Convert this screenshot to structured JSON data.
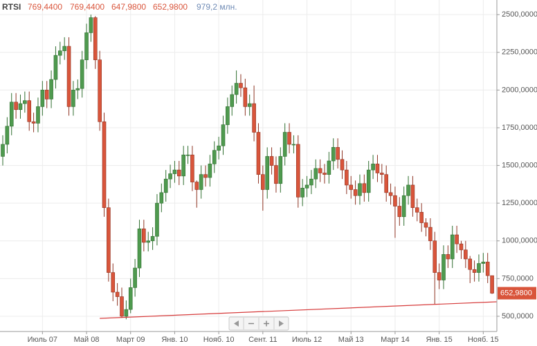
{
  "chart_data": {
    "type": "candlestick",
    "title": "RTSI",
    "ohlc_labels": [
      "769,4400",
      "769,4400",
      "647,9800",
      "652,9800"
    ],
    "volume_label": "979,2 млн.",
    "last_label": "652,9800",
    "categories": [
      null,
      null,
      null,
      null,
      null,
      null,
      null,
      null,
      null,
      "Июль 07",
      null,
      null,
      null,
      null,
      null,
      null,
      null,
      null,
      null,
      "Май 08",
      null,
      null,
      null,
      null,
      null,
      null,
      null,
      null,
      null,
      "Март 09",
      null,
      null,
      null,
      null,
      null,
      null,
      null,
      null,
      null,
      "Янв. 10",
      null,
      null,
      null,
      null,
      null,
      null,
      null,
      null,
      null,
      "Нояб. 10",
      null,
      null,
      null,
      null,
      null,
      null,
      null,
      null,
      null,
      "Сент. 11",
      null,
      null,
      null,
      null,
      null,
      null,
      null,
      null,
      null,
      "Июль 12",
      null,
      null,
      null,
      null,
      null,
      null,
      null,
      null,
      null,
      "Май 13",
      null,
      null,
      null,
      null,
      null,
      null,
      null,
      null,
      null,
      "Март 14",
      null,
      null,
      null,
      null,
      null,
      null,
      null,
      null,
      null,
      "Янв. 15",
      null,
      null,
      null,
      null,
      null,
      null,
      null,
      null,
      null,
      "Нояб. 15",
      null,
      null
    ],
    "open": [
      1560,
      1640,
      1760,
      1920,
      1870,
      1910,
      1930,
      1790,
      1780,
      1890,
      2000,
      1940,
      2070,
      2230,
      2260,
      2290,
      1890,
      2000,
      2010,
      2200,
      2380,
      2480,
      2200,
      1790,
      1220,
      790,
      660,
      630,
      500,
      545,
      690,
      820,
      1080,
      990,
      1000,
      1030,
      1250,
      1320,
      1410,
      1445,
      1470,
      1430,
      1570,
      1570,
      1390,
      1340,
      1440,
      1420,
      1510,
      1600,
      1630,
      1770,
      1890,
      1970,
      2045,
      2015,
      1890,
      1910,
      1720,
      1440,
      1340,
      1560,
      1500,
      1380,
      1560,
      1720,
      1640,
      1640,
      1290,
      1350,
      1370,
      1410,
      1480,
      1450,
      1440,
      1530,
      1620,
      1540,
      1470,
      1370,
      1340,
      1300,
      1380,
      1320,
      1470,
      1510,
      1450,
      1440,
      1320,
      1300,
      1230,
      1160,
      1300,
      1370,
      1220,
      1190,
      1120,
      1090,
      1000,
      790,
      740,
      910,
      880,
      1040,
      980,
      940,
      880,
      810,
      790,
      850,
      860,
      769.44
    ],
    "high": [
      1700,
      1820,
      1980,
      1980,
      1970,
      1990,
      1990,
      1850,
      1950,
      2060,
      2060,
      2130,
      2290,
      2320,
      2350,
      2350,
      2060,
      2070,
      2260,
      2440,
      2500,
      2490,
      2260,
      1850,
      1280,
      850,
      720,
      690,
      605,
      750,
      880,
      1140,
      1140,
      1060,
      1090,
      1310,
      1380,
      1470,
      1505,
      1530,
      1530,
      1630,
      1630,
      1630,
      1400,
      1500,
      1500,
      1570,
      1660,
      1690,
      1830,
      1950,
      2030,
      2130,
      2105,
      2075,
      1970,
      2030,
      1780,
      1500,
      1620,
      1620,
      1560,
      1620,
      1780,
      1780,
      1700,
      1700,
      1410,
      1430,
      1470,
      1540,
      1540,
      1510,
      1590,
      1680,
      1680,
      1600,
      1530,
      1430,
      1400,
      1440,
      1440,
      1530,
      1570,
      1570,
      1510,
      1500,
      1380,
      1360,
      1290,
      1360,
      1430,
      1430,
      1280,
      1250,
      1150,
      1150,
      1060,
      850,
      970,
      970,
      1100,
      1100,
      1000,
      1000,
      900,
      870,
      910,
      920,
      920,
      769.44
    ],
    "low": [
      1500,
      1580,
      1700,
      1810,
      1810,
      1850,
      1730,
      1720,
      1720,
      1830,
      1880,
      1880,
      2010,
      2170,
      2200,
      1830,
      1830,
      1940,
      1950,
      2140,
      2320,
      2140,
      1730,
      1160,
      730,
      600,
      570,
      490,
      480,
      520,
      630,
      760,
      930,
      930,
      940,
      970,
      1190,
      1260,
      1350,
      1385,
      1370,
      1370,
      1510,
      1330,
      1220,
      1280,
      1360,
      1360,
      1450,
      1540,
      1570,
      1710,
      1830,
      1910,
      1955,
      1830,
      1830,
      1660,
      1380,
      1200,
      1280,
      1440,
      1320,
      1320,
      1500,
      1580,
      1580,
      1220,
      1230,
      1290,
      1310,
      1350,
      1390,
      1380,
      1380,
      1470,
      1480,
      1410,
      1310,
      1280,
      1240,
      1240,
      1260,
      1260,
      1410,
      1390,
      1380,
      1260,
      1240,
      1020,
      1100,
      1100,
      1240,
      1160,
      1130,
      1060,
      1030,
      940,
      580,
      680,
      680,
      820,
      820,
      920,
      880,
      820,
      720,
      730,
      730,
      790,
      720,
      647.98
    ],
    "close": [
      1640,
      1760,
      1920,
      1870,
      1910,
      1930,
      1790,
      1780,
      1890,
      2000,
      1940,
      2070,
      2230,
      2260,
      2290,
      1890,
      2000,
      2010,
      2200,
      2380,
      2480,
      2200,
      1790,
      1220,
      790,
      660,
      630,
      500,
      545,
      690,
      820,
      1080,
      990,
      1000,
      1030,
      1250,
      1320,
      1410,
      1445,
      1470,
      1430,
      1570,
      1570,
      1390,
      1340,
      1440,
      1420,
      1510,
      1600,
      1630,
      1770,
      1890,
      1970,
      2045,
      2015,
      1890,
      1910,
      1720,
      1440,
      1340,
      1560,
      1500,
      1380,
      1560,
      1720,
      1640,
      1640,
      1290,
      1350,
      1370,
      1410,
      1480,
      1450,
      1440,
      1530,
      1620,
      1540,
      1470,
      1370,
      1340,
      1300,
      1380,
      1320,
      1470,
      1510,
      1450,
      1440,
      1320,
      1300,
      1230,
      1160,
      1300,
      1370,
      1220,
      1190,
      1120,
      1090,
      1000,
      790,
      740,
      910,
      880,
      1040,
      980,
      940,
      880,
      810,
      790,
      850,
      860,
      769.44,
      652.98
    ],
    "up_color": "#4f9a4f",
    "down_color": "#d9553b",
    "trend_line": {
      "x": [
        22,
        112
      ],
      "values": [
        486,
        596
      ],
      "color": "#d63a3a"
    },
    "ylim": [
      399,
      2597
    ],
    "yticks": [
      {
        "value": 500,
        "label": "500,0000"
      },
      {
        "value": 750,
        "label": "750,0000"
      },
      {
        "value": 1000,
        "label": "1000,0000"
      },
      {
        "value": 1250,
        "label": "1250,0000"
      },
      {
        "value": 1500,
        "label": "1500,0000"
      },
      {
        "value": 1750,
        "label": "1750,0000"
      },
      {
        "value": 2000,
        "label": "2000,0000"
      },
      {
        "value": 2250,
        "label": "2250,0000"
      },
      {
        "value": 2500,
        "label": "2500,0000"
      }
    ],
    "grid": true
  }
}
